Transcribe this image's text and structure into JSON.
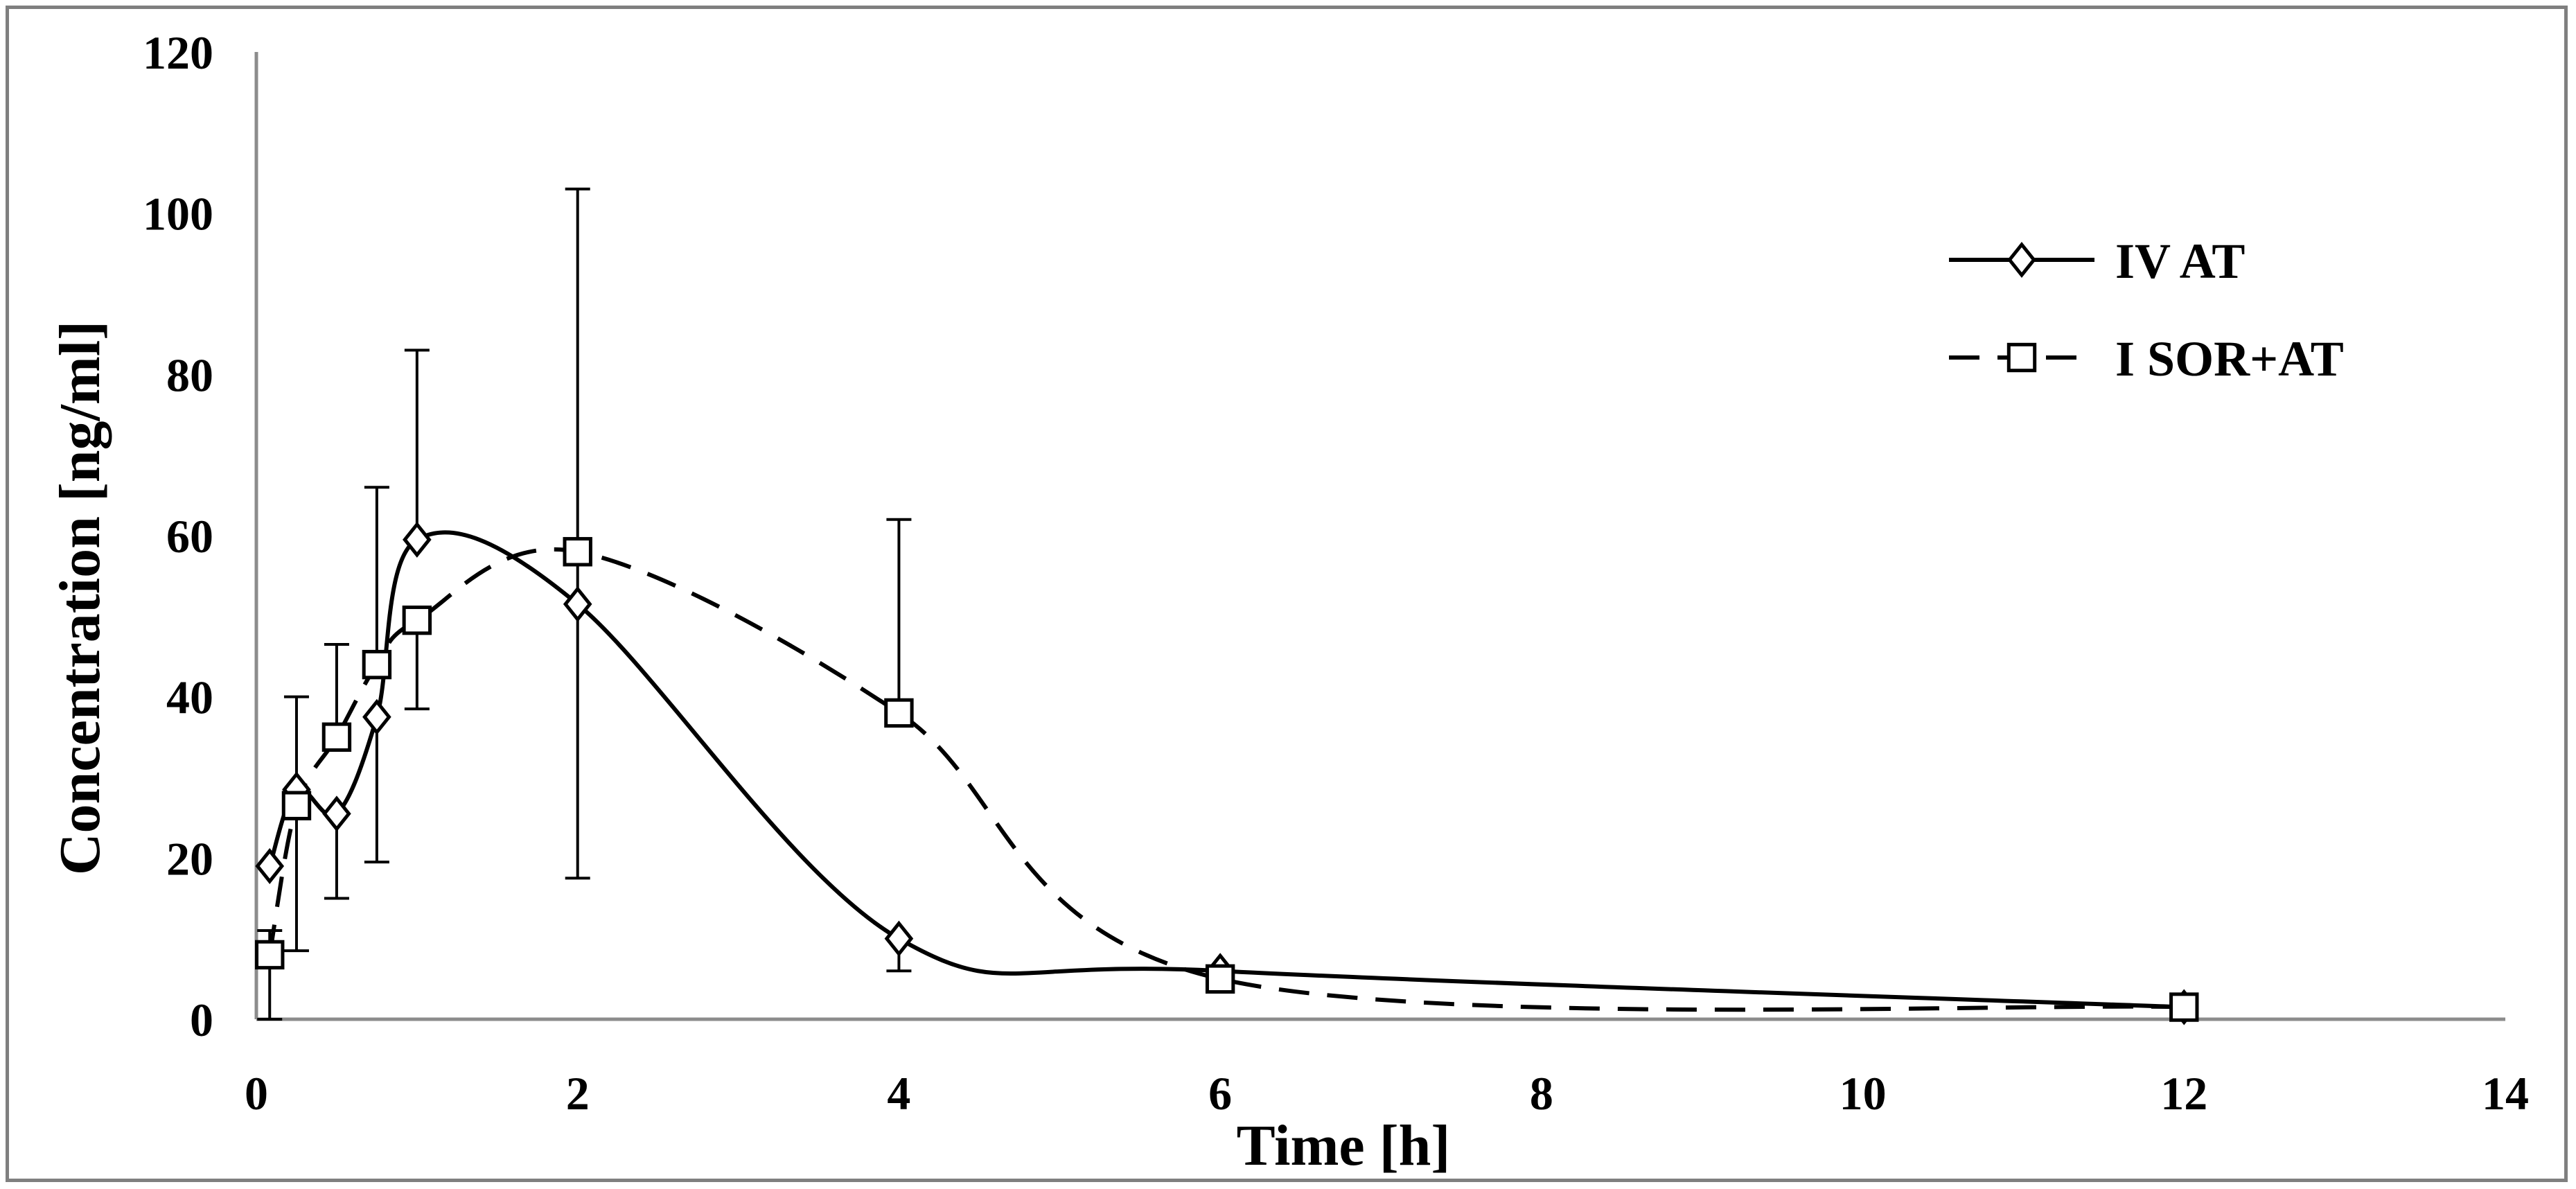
{
  "chart_data": {
    "type": "scatter",
    "title": "",
    "xlabel": "Time [h]",
    "ylabel": "Concentration [ng/ml]",
    "xlim": [
      0,
      14
    ],
    "ylim": [
      0,
      120
    ],
    "xticks": [
      0,
      2,
      4,
      6,
      8,
      10,
      12,
      14
    ],
    "yticks": [
      0,
      20,
      40,
      60,
      80,
      100,
      120
    ],
    "xtick_labels": [
      "0",
      "2",
      "4",
      "6",
      "8",
      "10",
      "12",
      "14"
    ],
    "ytick_labels": [
      "0",
      "20",
      "40",
      "60",
      "80",
      "100",
      "120"
    ],
    "grid": false,
    "legend_position": "top-right",
    "series": [
      {
        "name": "IV AT",
        "marker": "diamond",
        "line_style": "solid",
        "smooth": true,
        "color": "#000000",
        "x": [
          0.083,
          0.25,
          0.5,
          0.75,
          1,
          2,
          4,
          6,
          12
        ],
        "y": [
          19,
          28.5,
          25.5,
          37.5,
          59.5,
          51.5,
          10,
          6,
          1.5
        ],
        "error_low": [
          null,
          null,
          15,
          19.5,
          null,
          null,
          6,
          null,
          null
        ],
        "error_high": [
          null,
          null,
          null,
          null,
          83,
          null,
          null,
          null,
          null
        ]
      },
      {
        "name": "I SOR+AT",
        "marker": "square",
        "line_style": "dashed",
        "smooth": true,
        "color": "#000000",
        "x": [
          0.083,
          0.25,
          0.5,
          0.75,
          1,
          2,
          4,
          6,
          12
        ],
        "y": [
          8,
          26.5,
          35,
          44,
          49.5,
          58,
          38,
          5,
          1.5
        ],
        "error_low": [
          0,
          8.5,
          null,
          null,
          38.5,
          17.5,
          null,
          null,
          null
        ],
        "error_high": [
          11,
          40,
          46.5,
          66,
          null,
          103,
          62,
          null,
          null
        ]
      }
    ]
  }
}
